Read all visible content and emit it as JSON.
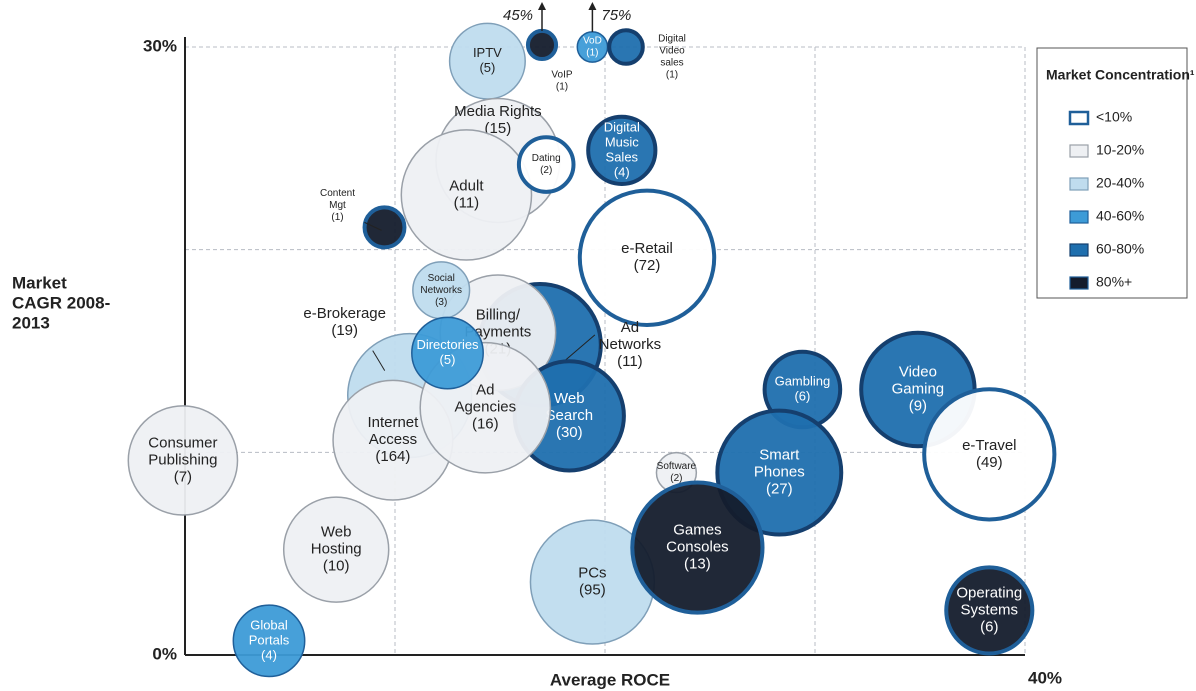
{
  "chart_data": {
    "type": "bubble",
    "xlabel": "Average ROCE",
    "ylabel": [
      "Market",
      "CAGR 2008-",
      "2013"
    ],
    "xlim": [
      0,
      40
    ],
    "ylim": [
      0,
      30
    ],
    "xticks": [
      {
        "value": 40,
        "label": "40%"
      }
    ],
    "yticks": [
      {
        "value": 0,
        "label": "0%"
      },
      {
        "value": 30,
        "label": "30%"
      }
    ],
    "xgrid": [
      10,
      20,
      30,
      40
    ],
    "ygrid": [
      10,
      20,
      30
    ],
    "annotations": [
      "45%",
      "75%"
    ],
    "legend": {
      "title": "Market Concentration¹",
      "items": [
        {
          "name": "<10%",
          "color": "#ffffff",
          "edge": "#1f5f99"
        },
        {
          "name": "10-20%",
          "color": "#eef0f3",
          "edge": "#9aa0a8"
        },
        {
          "name": "20-40%",
          "color": "#bfdcee",
          "edge": "#7f9fb8"
        },
        {
          "name": "40-60%",
          "color": "#3d9bd7",
          "edge": "#1f5f99"
        },
        {
          "name": "60-80%",
          "color": "#1f6fae",
          "edge": "#153f6e"
        },
        {
          "name": "80%+",
          "color": "#141c2c",
          "edge": "#1f5f99"
        }
      ]
    },
    "points": [
      {
        "label": [
          "IPTV"
        ],
        "count": "(5)",
        "x": 14.4,
        "y": 29.3,
        "r": 1.8,
        "class": 2
      },
      {
        "label": [
          "Media Rights"
        ],
        "count": "(15)",
        "x": 14.9,
        "y": 24.4,
        "r": 2.95,
        "class": 1
      },
      {
        "label": [
          "Adult"
        ],
        "count": "(11)",
        "x": 13.4,
        "y": 22.7,
        "r": 3.1,
        "class": 1
      },
      {
        "label": [
          "Dating"
        ],
        "count": "(2)",
        "x": 17.2,
        "y": 24.2,
        "r": 1.3,
        "class": 0
      },
      {
        "label": [
          "Digital",
          "Music",
          "Sales"
        ],
        "count": "(4)",
        "x": 20.8,
        "y": 24.9,
        "r": 1.6,
        "class": 4
      },
      {
        "label": [
          "Content",
          "Mgt"
        ],
        "count": "(1)",
        "x": 9.5,
        "y": 21.1,
        "r": 0.95,
        "class": 5
      },
      {
        "label": [
          "e-Retail"
        ],
        "count": "(72)",
        "x": 22.0,
        "y": 19.6,
        "r": 3.2,
        "class": 0
      },
      {
        "label": [
          "VoIP"
        ],
        "count": "(1)",
        "x": 17.0,
        "y": 30.1,
        "r": 0.67,
        "class": 5
      },
      {
        "label": [
          "VoD"
        ],
        "count": "(1)",
        "x": 19.4,
        "y": 30.0,
        "r": 0.72,
        "class": 3
      },
      {
        "label": [
          "Digital",
          "Video",
          "sales"
        ],
        "count": "(1)",
        "x": 21.0,
        "y": 30.0,
        "r": 0.8,
        "class": 4
      },
      {
        "label": [
          "Ad",
          "Networks"
        ],
        "count": "(11)",
        "x": 16.9,
        "y": 15.3,
        "r": 2.9,
        "class": 4
      },
      {
        "label": [
          "Billing/",
          "Payments"
        ],
        "count": "(21)",
        "x": 14.9,
        "y": 15.9,
        "r": 2.75,
        "class": 1
      },
      {
        "label": [
          "Social",
          "Networks"
        ],
        "count": "(3)",
        "x": 12.2,
        "y": 18.0,
        "r": 1.35,
        "class": 2
      },
      {
        "label": [
          "e-Brokerage"
        ],
        "count": "(19)",
        "x": 10.7,
        "y": 12.8,
        "r": 2.95,
        "class": 2
      },
      {
        "label": [
          "Web",
          "Search"
        ],
        "count": "(30)",
        "x": 18.3,
        "y": 11.8,
        "r": 2.6,
        "class": 4
      },
      {
        "label": [
          "Internet",
          "Access"
        ],
        "count": "(164)",
        "x": 9.9,
        "y": 10.6,
        "r": 2.85,
        "class": 1
      },
      {
        "label": [
          "Ad",
          "Agencies"
        ],
        "count": "(16)",
        "x": 14.3,
        "y": 12.2,
        "r": 3.1,
        "class": 1
      },
      {
        "label": [
          "Directories"
        ],
        "count": "(5)",
        "x": 12.5,
        "y": 14.9,
        "r": 1.7,
        "class": 3
      },
      {
        "label": [
          "Consumer",
          "Publishing"
        ],
        "count": "(7)",
        "x": -0.1,
        "y": 9.6,
        "r": 2.6,
        "class": 1
      },
      {
        "label": [
          "Web",
          "Hosting"
        ],
        "count": "(10)",
        "x": 7.2,
        "y": 5.2,
        "r": 2.5,
        "class": 1
      },
      {
        "label": [
          "Global",
          "Portals"
        ],
        "count": "(4)",
        "x": 4.0,
        "y": 0.7,
        "r": 1.7,
        "class": 3
      },
      {
        "label": [
          "Software"
        ],
        "count": "(2)",
        "x": 23.4,
        "y": 9.0,
        "r": 0.95,
        "class": 1
      },
      {
        "label": [
          "Gambling"
        ],
        "count": "(6)",
        "x": 29.4,
        "y": 13.1,
        "r": 1.8,
        "class": 4
      },
      {
        "label": [
          "Smart",
          "Phones"
        ],
        "count": "(27)",
        "x": 28.3,
        "y": 9.0,
        "r": 2.95,
        "class": 4
      },
      {
        "label": [
          "Video",
          "Gaming"
        ],
        "count": "(9)",
        "x": 34.9,
        "y": 13.1,
        "r": 2.7,
        "class": 4
      },
      {
        "label": [
          "e-Travel"
        ],
        "count": "(49)",
        "x": 38.3,
        "y": 9.9,
        "r": 3.1,
        "class": 0
      },
      {
        "label": [
          "PCs"
        ],
        "count": "(95)",
        "x": 19.4,
        "y": 3.6,
        "r": 2.95,
        "class": 2
      },
      {
        "label": [
          "Games",
          "Consoles"
        ],
        "count": "(13)",
        "x": 24.4,
        "y": 5.3,
        "r": 3.1,
        "class": 5
      },
      {
        "label": [
          "Operating",
          "Systems"
        ],
        "count": "(6)",
        "x": 38.3,
        "y": 2.2,
        "r": 2.05,
        "class": 5
      }
    ]
  }
}
